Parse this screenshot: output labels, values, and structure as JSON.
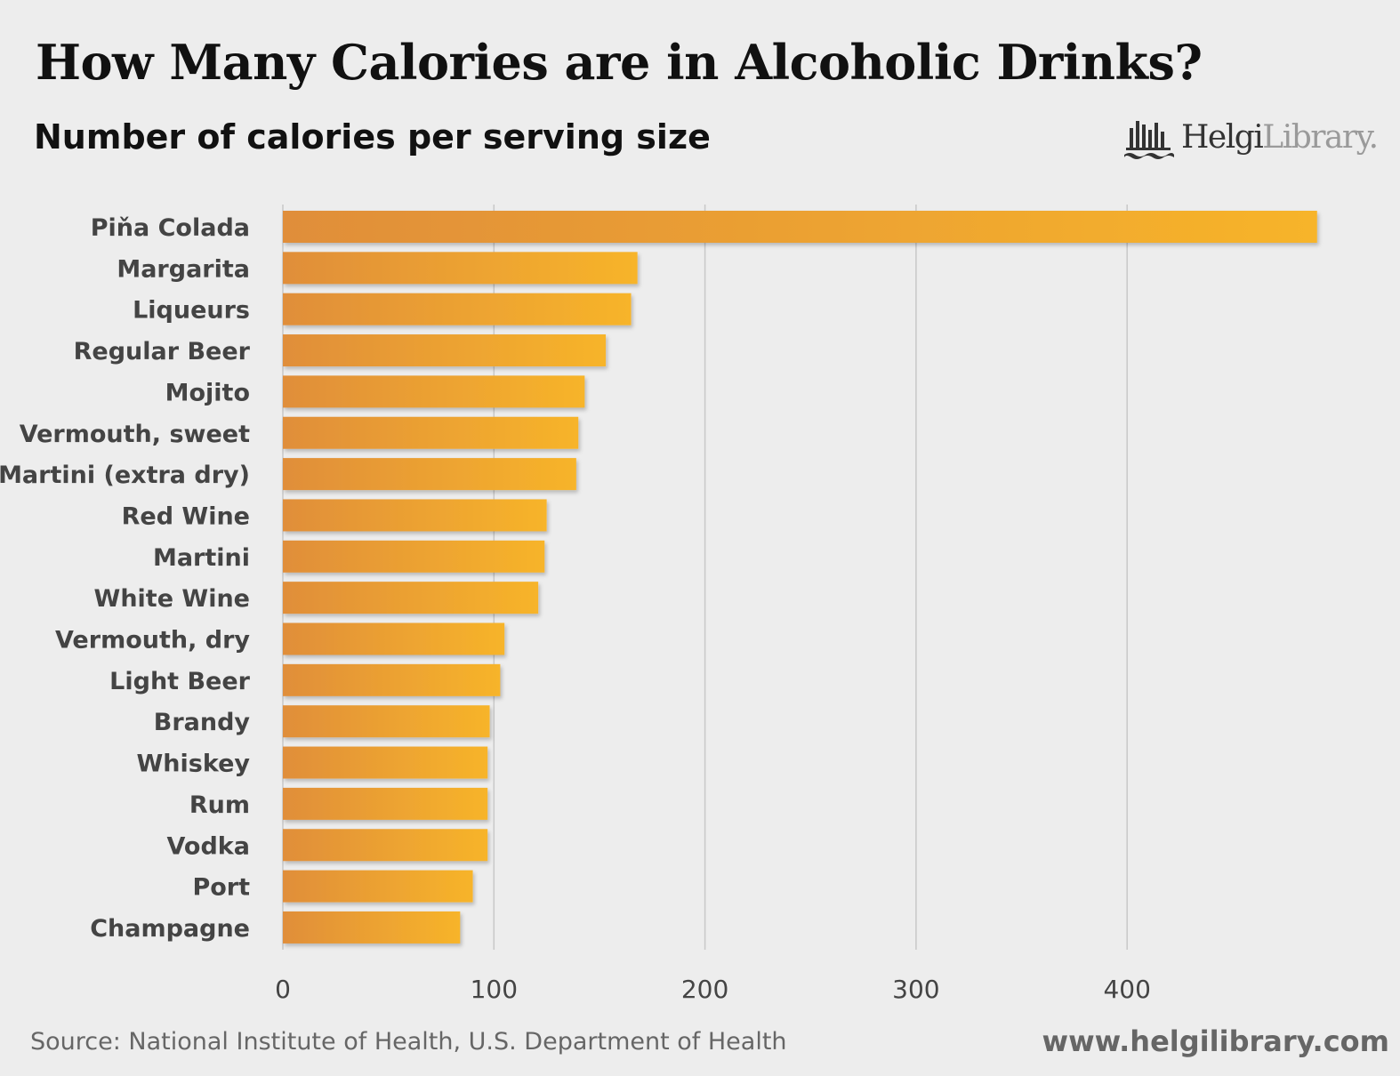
{
  "header": {
    "title": "How Many Calories are in Alcoholic Drinks?",
    "subtitle": "Number of calories per serving size"
  },
  "logo": {
    "icon": "helgi-library-skyline-icon",
    "text_strong": "Helgi",
    "text_light": "Library."
  },
  "footer": {
    "source": "Source: National Institute of Health, U.S. Department of Health",
    "website": "www.helgilibrary.com"
  },
  "colors": {
    "bar_start": "#e08e3a",
    "bar_end": "#f7b42a",
    "gridline": "#c8c8c8",
    "label": "#444444",
    "tick_label": "#444444"
  },
  "chart_data": {
    "type": "bar",
    "orientation": "horizontal",
    "title": "How Many Calories are in Alcoholic Drinks?",
    "subtitle": "Number of calories per serving size",
    "xlabel": "",
    "ylabel": "",
    "categories": [
      "Piňa Colada",
      "Margarita",
      "Liqueurs",
      "Regular Beer",
      "Mojito",
      "Vermouth, sweet",
      "Martini (extra dry)",
      "Red Wine",
      "Martini",
      "White Wine",
      "Vermouth, dry",
      "Light Beer",
      "Brandy",
      "Whiskey",
      "Rum",
      "Vodka",
      "Port",
      "Champagne"
    ],
    "values": [
      490,
      168,
      165,
      153,
      143,
      140,
      139,
      125,
      124,
      121,
      105,
      103,
      98,
      97,
      97,
      97,
      90,
      84
    ],
    "xlim": [
      0,
      500
    ],
    "xticks": [
      0,
      100,
      200,
      300,
      400
    ],
    "grid": true,
    "legend": "none"
  }
}
